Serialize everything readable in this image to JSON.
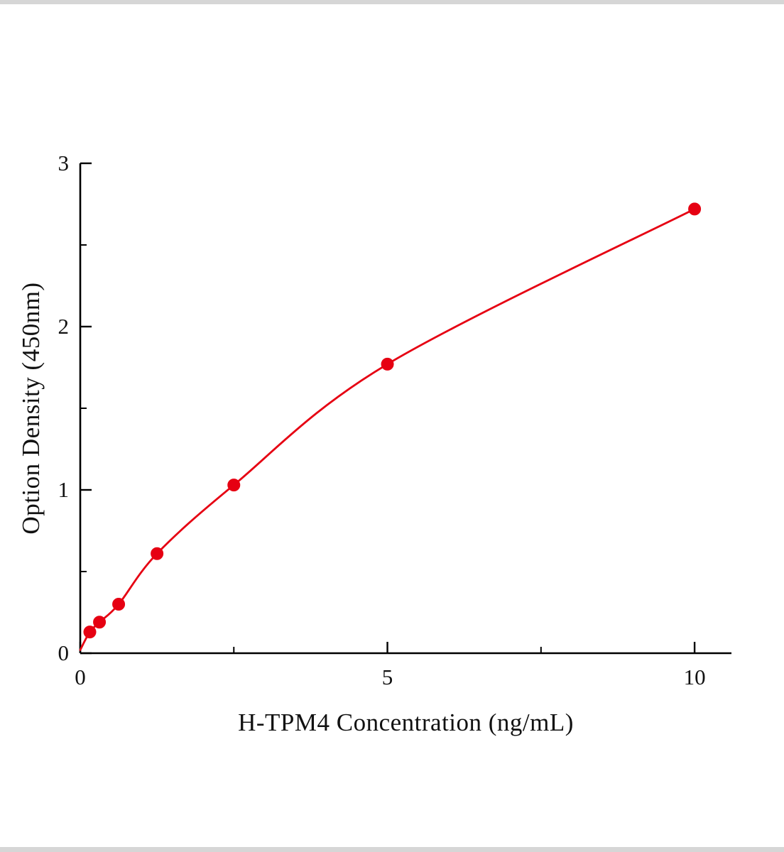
{
  "chart_data": {
    "type": "scatter",
    "title": "",
    "xlabel": "H-TPM4 Concentration (ng/mL)",
    "ylabel": "Option Density (450nm)",
    "x": [
      0.156,
      0.313,
      0.625,
      1.25,
      2.5,
      5,
      10
    ],
    "y": [
      0.13,
      0.19,
      0.3,
      0.61,
      1.03,
      1.77,
      2.72
    ],
    "curve_start": {
      "x": 0,
      "y": 0.02
    },
    "xlim": [
      0,
      10.6
    ],
    "ylim": [
      0,
      3
    ],
    "x_major_ticks": [
      0,
      5,
      10
    ],
    "x_minor_ticks": [
      2.5,
      7.5
    ],
    "y_major_ticks": [
      0,
      1,
      2,
      3
    ],
    "y_minor_ticks": [
      0.5,
      1.5,
      2.5
    ],
    "grid": false,
    "legend_position": "none",
    "marker_color": "#e60012",
    "line_color": "#e60012",
    "axis_color": "#000000",
    "tick_label_color": "#111111"
  }
}
